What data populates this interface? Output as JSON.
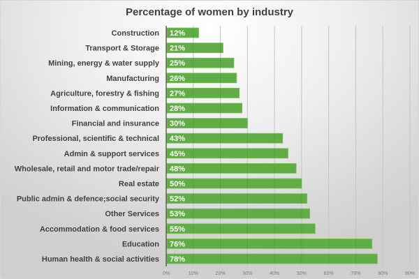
{
  "chart_data": {
    "type": "bar",
    "orientation": "horizontal",
    "title": "Percentage of women by industry",
    "xlabel": "",
    "ylabel": "",
    "xlim": [
      0,
      90
    ],
    "grid": true,
    "bar_color": "#62ac45",
    "categories": [
      "Construction",
      "Transport & Storage",
      "Mining, energy & water supply",
      "Manufacturing",
      "Agriculture, forestry & fishing",
      "Information & communication",
      "Financial and insurance",
      "Professional, scientific & technical",
      "Admin & support services",
      "Wholesale, retail and motor trade/repair",
      "Real estate",
      "Public admin & defence;social security",
      "Other Services",
      "Accommodation & food services",
      "Education",
      "Human health & social activities"
    ],
    "values": [
      12,
      21,
      25,
      26,
      27,
      28,
      30,
      43,
      45,
      48,
      50,
      52,
      53,
      55,
      76,
      78
    ],
    "data_labels": [
      "12%",
      "21%",
      "25%",
      "26%",
      "27%",
      "28%",
      "30%",
      "43%",
      "45%",
      "48%",
      "50%",
      "52%",
      "53%",
      "55%",
      "76%",
      "78%"
    ],
    "x_ticks": [
      0,
      10,
      20,
      30,
      40,
      50,
      60,
      70,
      80,
      90
    ],
    "x_tick_labels": [
      "0%",
      "10%",
      "20%",
      "30%",
      "40%",
      "50%",
      "60%",
      "70%",
      "80%",
      "90%"
    ]
  }
}
